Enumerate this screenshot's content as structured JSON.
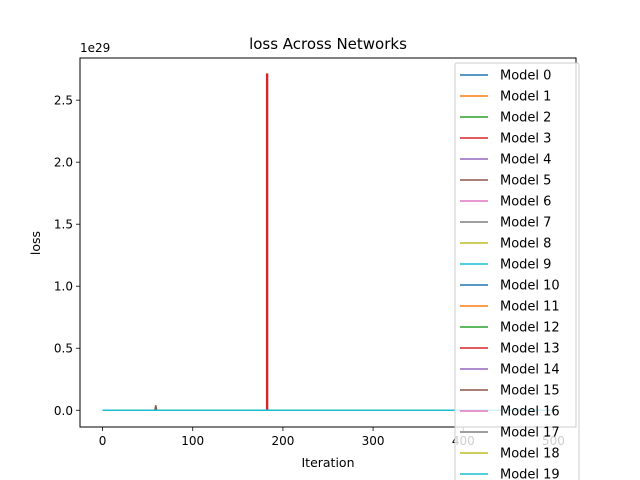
{
  "chart_data": {
    "type": "line",
    "title": "loss Across Networks",
    "xlabel": "Iteration",
    "ylabel": "loss",
    "offset_text": "1e29",
    "xlim": [
      -25,
      525
    ],
    "ylim": [
      -0.135,
      2.84
    ],
    "x_ticks": [
      0,
      100,
      200,
      300,
      400,
      500
    ],
    "x_tick_labels": [
      "0",
      "100",
      "200",
      "300",
      "400",
      "500"
    ],
    "y_ticks": [
      0.0,
      0.5,
      1.0,
      1.5,
      2.0,
      2.5
    ],
    "y_tick_labels": [
      "0.0",
      "0.5",
      "1.0",
      "1.5",
      "2.0",
      "2.5"
    ],
    "grid": false,
    "legend_position": "upper right",
    "series": [
      {
        "name": "Model 0",
        "color": "#1f77b4",
        "x": [
          0,
          499
        ],
        "y": [
          0,
          0
        ]
      },
      {
        "name": "Model 1",
        "color": "#ff7f0e",
        "x": [
          0,
          499
        ],
        "y": [
          0,
          0
        ]
      },
      {
        "name": "Model 2",
        "color": "#2ca02c",
        "x": [
          0,
          499
        ],
        "y": [
          0,
          0
        ]
      },
      {
        "name": "Model 3",
        "color": "#d62728",
        "x": [
          0,
          182,
          182,
          183,
          183,
          499
        ],
        "y": [
          0,
          0,
          2.71,
          2.71,
          0,
          0
        ]
      },
      {
        "name": "Model 4",
        "color": "#9467bd",
        "x": [
          0,
          499
        ],
        "y": [
          0,
          0
        ]
      },
      {
        "name": "Model 5",
        "color": "#8c564b",
        "x": [
          0,
          58,
          59,
          60
        ],
        "y": [
          0,
          0,
          0.04,
          0
        ]
      },
      {
        "name": "Model 6",
        "color": "#e377c2",
        "x": [
          0,
          499
        ],
        "y": [
          0,
          0
        ]
      },
      {
        "name": "Model 7",
        "color": "#7f7f7f",
        "x": [
          0,
          499
        ],
        "y": [
          0,
          0
        ]
      },
      {
        "name": "Model 8",
        "color": "#bcbd22",
        "x": [
          0,
          499
        ],
        "y": [
          0,
          0
        ]
      },
      {
        "name": "Model 9",
        "color": "#17becf",
        "x": [
          0,
          499
        ],
        "y": [
          0,
          0
        ]
      },
      {
        "name": "Model 10",
        "color": "#1f77b4",
        "x": [
          0,
          499
        ],
        "y": [
          0,
          0
        ]
      },
      {
        "name": "Model 11",
        "color": "#ff7f0e",
        "x": [
          0,
          499
        ],
        "y": [
          0,
          0
        ]
      },
      {
        "name": "Model 12",
        "color": "#2ca02c",
        "x": [
          0,
          499
        ],
        "y": [
          0,
          0
        ]
      },
      {
        "name": "Model 13",
        "color": "#d62728",
        "x": [
          0,
          499
        ],
        "y": [
          0,
          0
        ]
      },
      {
        "name": "Model 14",
        "color": "#9467bd",
        "x": [
          0,
          499
        ],
        "y": [
          0,
          0
        ]
      },
      {
        "name": "Model 15",
        "color": "#8c564b",
        "x": [
          0,
          499
        ],
        "y": [
          0,
          0
        ]
      },
      {
        "name": "Model 16",
        "color": "#e377c2",
        "x": [
          0,
          499
        ],
        "y": [
          0,
          0
        ]
      },
      {
        "name": "Model 17",
        "color": "#7f7f7f",
        "x": [
          0,
          499
        ],
        "y": [
          0,
          0
        ]
      },
      {
        "name": "Model 18",
        "color": "#bcbd22",
        "x": [
          0,
          499
        ],
        "y": [
          0,
          0
        ]
      },
      {
        "name": "Model 19",
        "color": "#17becf",
        "x": [
          0,
          499
        ],
        "y": [
          0,
          0
        ]
      }
    ]
  }
}
